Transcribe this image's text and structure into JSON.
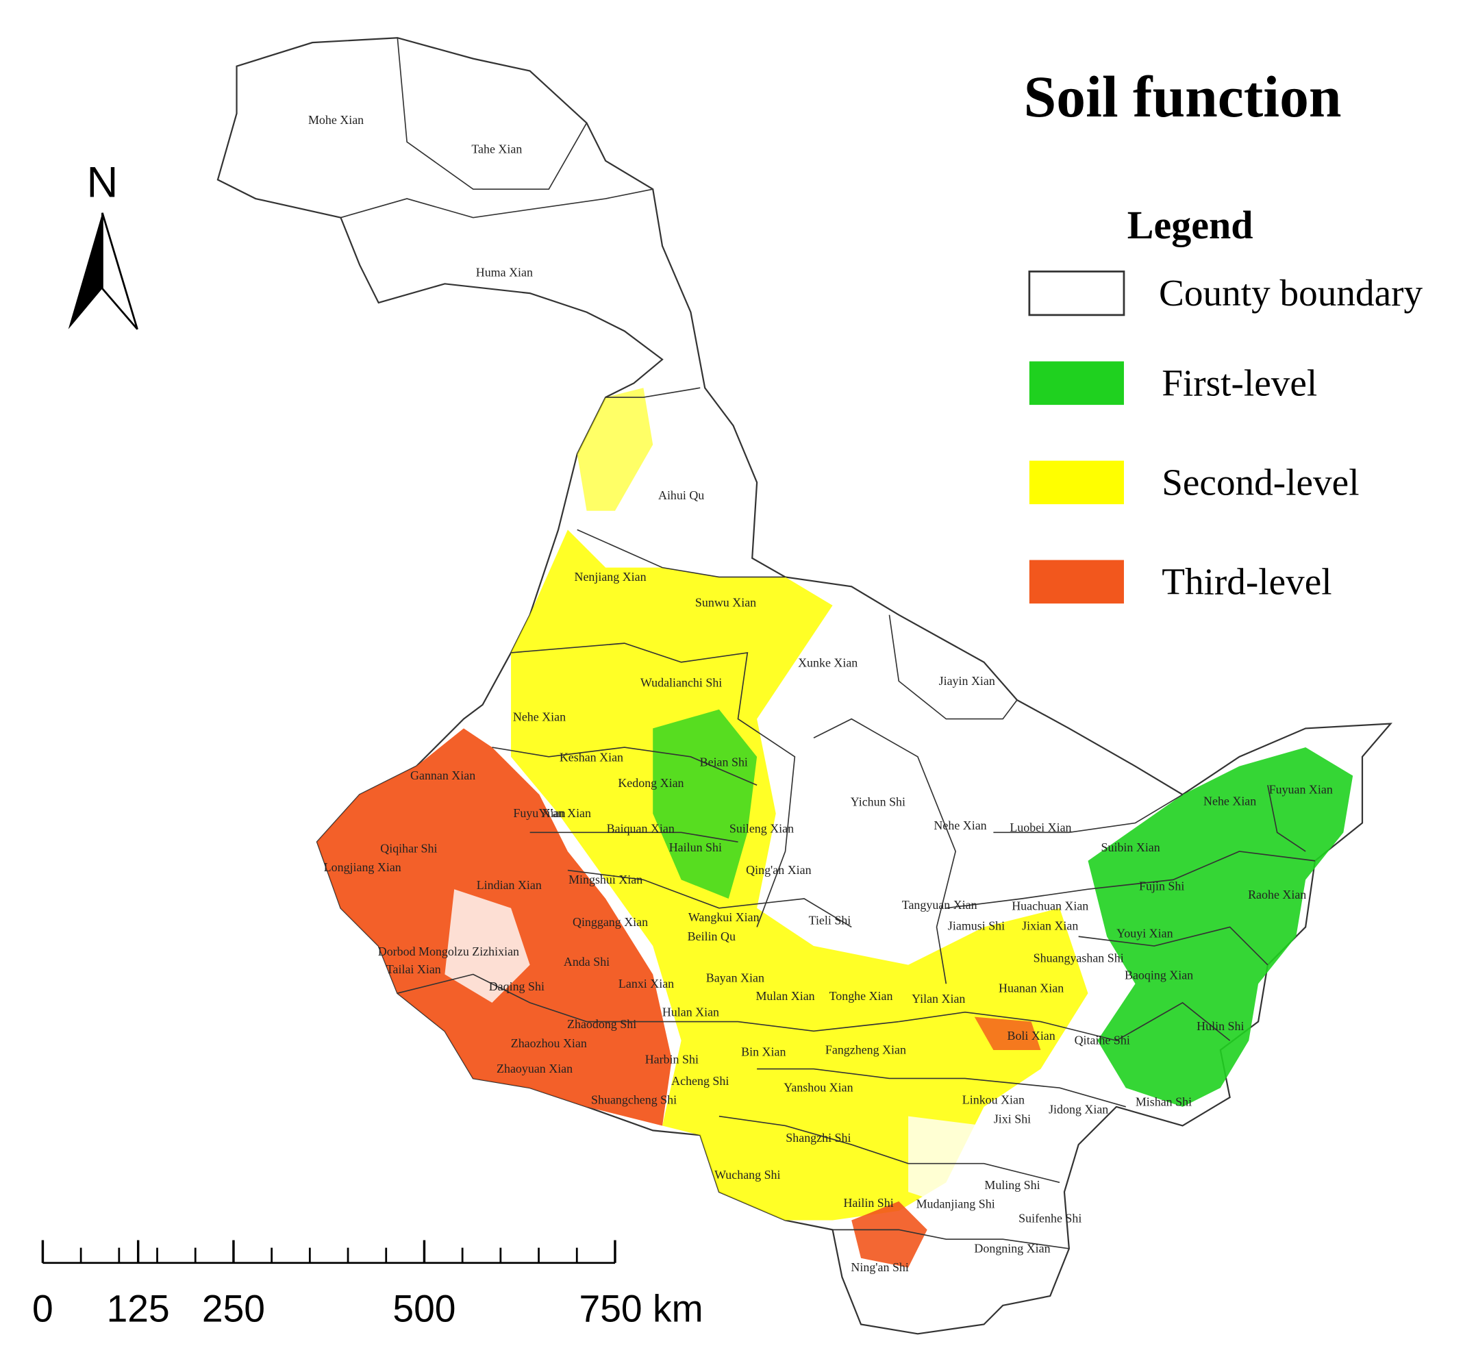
{
  "title": "Soil function",
  "north_arrow": "N",
  "legend": {
    "title": "Legend",
    "items": [
      {
        "label": "County boundary",
        "color": "#ffffff"
      },
      {
        "label": "First-level",
        "color": "#1fd11f"
      },
      {
        "label": "Second-level",
        "color": "#ffff00"
      },
      {
        "label": "Third-level",
        "color": "#f2571d"
      }
    ]
  },
  "scale_bar": {
    "range": [
      0,
      750
    ],
    "ticks": [
      0,
      125,
      250,
      500,
      {
        "value": 750,
        "label": "750 km"
      }
    ]
  },
  "counties": [
    "Mohe Xian",
    "Tahe Xian",
    "Huma Xian",
    "Aihui Qu",
    "Nenjiang Xian",
    "Sunwu Xian",
    "Xunke Xian",
    "Jiayin Xian",
    "Wudalianchi Shi",
    "Nehe Xian",
    "Keshan Xian",
    "Beian Shi",
    "Kedong Xian",
    "Gannan Xian",
    "Yichun Shi",
    "Fuyu Xian",
    "Baiquan Xian",
    "Suileng Xian",
    "Nehe Xian",
    "Luobei Xian",
    "Suibin Xian",
    "Nehe Xian",
    "Fuyuan Xian",
    "Yi'an Xian",
    "Qiqihar Shi",
    "Longjiang Xian",
    "Hailun Shi",
    "Qing'an Xian",
    "Lindian Xian",
    "Mingshui Xian",
    "Fujin Shi",
    "Raohe Xian",
    "Tieli Shi",
    "Tangyuan Xian",
    "Huachuan Xian",
    "Jiamusi Shi",
    "Jixian Xian",
    "Qinggang Xian",
    "Wangkui Xian",
    "Youyi Xian",
    "Beilin Qu",
    "Dorbod Mongolzu Zizhixian",
    "Anda Shi",
    "Shuangyashan Shi",
    "Tailai Xian",
    "Daqing Shi",
    "Lanxi Xian",
    "Bayan Xian",
    "Baoqing Xian",
    "Mulan Xian",
    "Tonghe Xian",
    "Yilan Xian",
    "Huanan Xian",
    "Hulan Xian",
    "Zhaodong Shi",
    "Hulin Shi",
    "Boli Xian",
    "Qitaihe Shi",
    "Zhaozhou Xian",
    "Bin Xian",
    "Fangzheng Xian",
    "Harbin Shi",
    "Zhaoyuan Xian",
    "Acheng Shi",
    "Yanshou Xian",
    "Linkou Xian",
    "Jidong Xian",
    "Mishan Shi",
    "Jixi Shi",
    "Shuangcheng Shi",
    "Shangzhi Shi",
    "Wuchang Shi",
    "Muling Shi",
    "Hailin Shi",
    "Mudanjiang Shi",
    "Suifenhe Shi",
    "Dongning Xian",
    "Ning'an Shi"
  ]
}
